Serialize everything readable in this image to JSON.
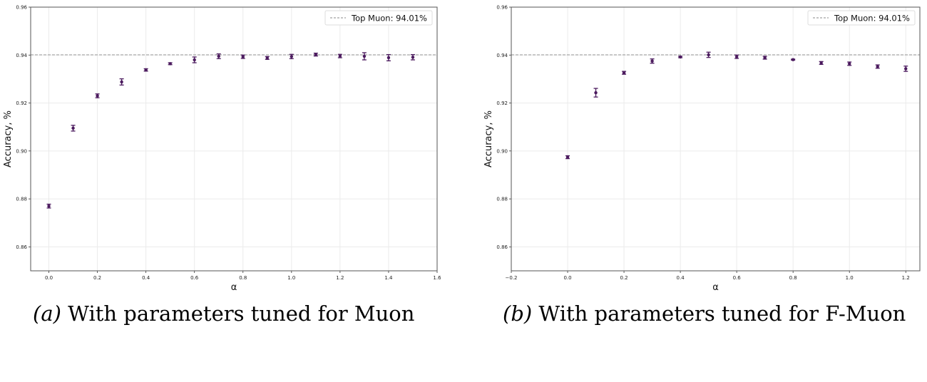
{
  "chart_data": [
    {
      "type": "scatter",
      "caption_label": "(a)",
      "caption": "With parameters tuned for Muon",
      "xlabel": "α",
      "ylabel": "Accuracy, %",
      "xlim": [
        -0.075,
        1.6
      ],
      "ylim": [
        0.85,
        0.96
      ],
      "xticks": [
        "0.0",
        "0.2",
        "0.4",
        "0.6",
        "0.8",
        "1.0",
        "1.2",
        "1.4",
        "1.6"
      ],
      "yticks": [
        "0.86",
        "0.88",
        "0.90",
        "0.92",
        "0.94",
        "0.96"
      ],
      "grid": true,
      "legend_position": "top-right",
      "reference_line": {
        "label": "Top Muon: 94.01%",
        "value": 0.9401,
        "style": "dashed",
        "color": "#a0a0a0"
      },
      "marker_color": "#4b1a5e",
      "x": [
        0.0,
        0.1,
        0.2,
        0.3,
        0.4,
        0.5,
        0.6,
        0.7,
        0.8,
        0.9,
        1.0,
        1.1,
        1.2,
        1.3,
        1.4,
        1.5
      ],
      "y": [
        0.877,
        0.9095,
        0.923,
        0.9288,
        0.9338,
        0.9364,
        0.938,
        0.9395,
        0.9393,
        0.9388,
        0.9394,
        0.9402,
        0.9396,
        0.9395,
        0.9389,
        0.9391
      ],
      "yerr": [
        0.0008,
        0.0012,
        0.0008,
        0.0013,
        0.0005,
        0.0004,
        0.0012,
        0.001,
        0.0007,
        0.0006,
        0.0009,
        0.0006,
        0.0007,
        0.0015,
        0.0013,
        0.0011
      ]
    },
    {
      "type": "scatter",
      "caption_label": "(b)",
      "caption": "With parameters tuned for F-Muon",
      "xlabel": "α",
      "ylabel": "Accuracy, %",
      "xlim": [
        -0.2,
        1.25
      ],
      "ylim": [
        0.85,
        0.96
      ],
      "xticks": [
        "−0.2",
        "0.0",
        "0.2",
        "0.4",
        "0.6",
        "0.8",
        "1.0",
        "1.2"
      ],
      "yticks": [
        "0.86",
        "0.88",
        "0.90",
        "0.92",
        "0.94",
        "0.96"
      ],
      "grid": true,
      "legend_position": "top-right",
      "reference_line": {
        "label": "Top Muon: 94.01%",
        "value": 0.9401,
        "style": "dashed",
        "color": "#a0a0a0"
      },
      "marker_color": "#4b1a5e",
      "x": [
        0.0,
        0.1,
        0.2,
        0.3,
        0.4,
        0.5,
        0.6,
        0.7,
        0.8,
        0.9,
        1.0,
        1.1,
        1.2
      ],
      "y": [
        0.8974,
        0.9243,
        0.9326,
        0.9375,
        0.9392,
        0.9401,
        0.9393,
        0.9389,
        0.9381,
        0.9367,
        0.9364,
        0.9352,
        0.9343
      ],
      "yerr": [
        0.0006,
        0.0018,
        0.0006,
        0.0009,
        0.0003,
        0.0011,
        0.0007,
        0.0006,
        0.0002,
        0.0006,
        0.0007,
        0.0007,
        0.0011
      ]
    }
  ]
}
